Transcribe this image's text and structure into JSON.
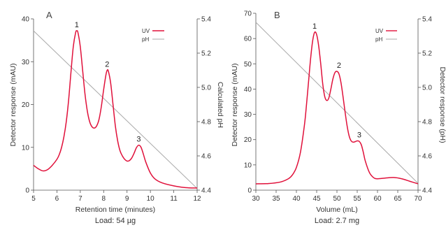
{
  "colors": {
    "uv": "#e0103a",
    "ph": "#a9a9a9",
    "axis": "#555555"
  },
  "chart_data": [
    {
      "panel_label": "A",
      "type": "line",
      "xlabel": "Retention time (minutes)",
      "ylabel_left": "Detector response (mAU)",
      "ylabel_right": "Calculated pH",
      "caption": "Load: 54 µg",
      "xlim": [
        5,
        12
      ],
      "ylim_left": [
        0,
        40
      ],
      "ylim_right": [
        4.4,
        5.4
      ],
      "x_ticks": [
        "5",
        "6",
        "7",
        "8",
        "9",
        "10",
        "11",
        "12"
      ],
      "y_left_ticks": [
        "0",
        "10",
        "20",
        "30",
        "40"
      ],
      "y_right_ticks": [
        "4.4",
        "4.6",
        "4.8",
        "5.0",
        "5.2",
        "5.4"
      ],
      "legend": [
        "UV",
        "pH"
      ],
      "peak_labels": [
        {
          "text": "1",
          "x": 6.85,
          "y": 37.2
        },
        {
          "text": "2",
          "x": 8.15,
          "y": 28.0
        },
        {
          "text": "3",
          "x": 9.5,
          "y": 10.5
        }
      ],
      "series": [
        {
          "name": "UV",
          "axis": "left",
          "x": [
            5.0,
            5.2,
            5.4,
            5.6,
            5.8,
            6.0,
            6.1,
            6.2,
            6.3,
            6.4,
            6.5,
            6.6,
            6.7,
            6.8,
            6.85,
            6.9,
            7.0,
            7.1,
            7.2,
            7.3,
            7.4,
            7.5,
            7.6,
            7.7,
            7.8,
            7.9,
            8.0,
            8.1,
            8.15,
            8.2,
            8.3,
            8.4,
            8.5,
            8.6,
            8.7,
            8.8,
            8.9,
            9.0,
            9.1,
            9.2,
            9.3,
            9.4,
            9.5,
            9.6,
            9.7,
            9.8,
            10.0,
            10.2,
            10.5,
            11.0,
            11.5,
            12.0
          ],
          "y": [
            5.8,
            5.0,
            4.5,
            4.8,
            5.8,
            7.2,
            8.3,
            10.0,
            12.5,
            16.0,
            21.0,
            27.5,
            33.5,
            36.8,
            37.2,
            36.8,
            33.5,
            28.0,
            22.5,
            18.5,
            16.0,
            14.8,
            14.5,
            15.0,
            16.5,
            19.5,
            23.5,
            27.0,
            28.0,
            27.8,
            25.0,
            20.0,
            15.0,
            11.5,
            9.2,
            8.0,
            7.2,
            6.8,
            6.9,
            7.5,
            8.6,
            9.9,
            10.5,
            10.0,
            8.4,
            6.6,
            4.0,
            2.6,
            1.7,
            1.0,
            0.6,
            0.5
          ]
        },
        {
          "name": "pH",
          "axis": "right",
          "x": [
            5.0,
            12.0
          ],
          "y": [
            5.33,
            4.41
          ]
        }
      ]
    },
    {
      "panel_label": "B",
      "type": "line",
      "xlabel": "Volume (mL)",
      "ylabel_left": "Detector response (mAU)",
      "ylabel_right": "Detector response (pH)",
      "caption": "Load: 2.7 mg",
      "xlim": [
        30,
        70
      ],
      "ylim_left": [
        0,
        70
      ],
      "ylim_right": [
        4.4,
        5.4
      ],
      "x_ticks": [
        "30",
        "35",
        "40",
        "45",
        "50",
        "55",
        "60",
        "65",
        "70"
      ],
      "y_left_ticks": [
        "0",
        "10",
        "20",
        "30",
        "40",
        "50",
        "60",
        "70"
      ],
      "y_right_ticks": [
        "4.4",
        "4.6",
        "4.8",
        "5.0",
        "5.2",
        "5.4"
      ],
      "legend": [
        "UV",
        "pH"
      ],
      "peak_labels": [
        {
          "text": "1",
          "x": 44.5,
          "y": 62.5
        },
        {
          "text": "2",
          "x": 50.5,
          "y": 47.0
        },
        {
          "text": "3",
          "x": 55.5,
          "y": 19.5
        }
      ],
      "series": [
        {
          "name": "UV",
          "axis": "left",
          "x": [
            30,
            33,
            36,
            38,
            39,
            40,
            41,
            42,
            42.5,
            43,
            43.5,
            44,
            44.5,
            45,
            45.5,
            46,
            46.5,
            47,
            47.5,
            48,
            48.5,
            49,
            49.5,
            50,
            50.5,
            51,
            51.5,
            52,
            52.5,
            53,
            53.5,
            54,
            54.5,
            55,
            55.5,
            56,
            56.5,
            57,
            58,
            59,
            60,
            62,
            64,
            66,
            68,
            70
          ],
          "y": [
            2.5,
            2.6,
            3.2,
            4.5,
            6.0,
            9.0,
            15.0,
            26.0,
            34.0,
            43.0,
            52.0,
            59.0,
            62.5,
            61.5,
            57.0,
            50.0,
            42.0,
            37.0,
            35.5,
            36.5,
            40.0,
            44.0,
            46.5,
            47.0,
            46.0,
            42.5,
            37.0,
            31.0,
            25.5,
            21.5,
            19.5,
            19.0,
            19.2,
            19.5,
            19.3,
            18.0,
            15.0,
            11.5,
            7.0,
            5.0,
            4.5,
            4.8,
            5.0,
            4.5,
            3.5,
            2.5
          ]
        },
        {
          "name": "pH",
          "axis": "right",
          "x": [
            30,
            70
          ],
          "y": [
            5.38,
            4.44
          ]
        }
      ]
    }
  ]
}
